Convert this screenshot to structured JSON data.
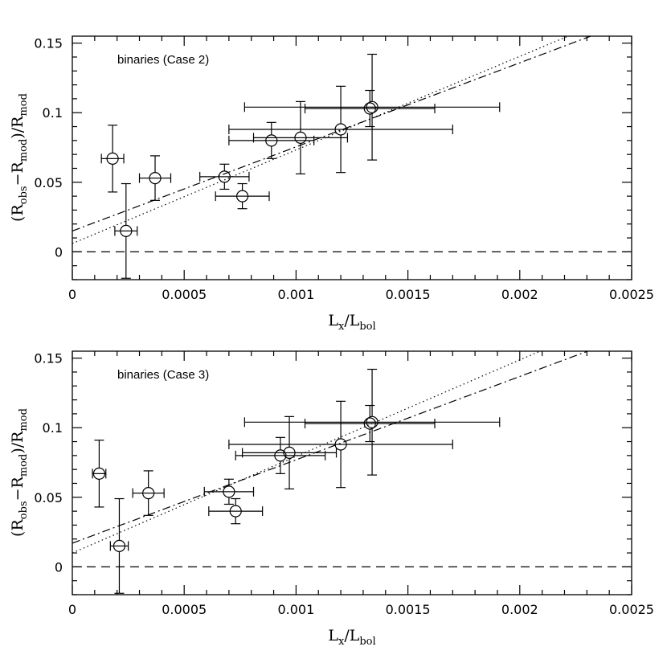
{
  "chart_data": [
    {
      "type": "scatter",
      "annotation": "binaries (Case 2)",
      "xlabel": {
        "main": "L",
        "sub1": "x",
        "sep": "/L",
        "sub2": "bol"
      },
      "ylabel": {
        "open": "(R",
        "sub1": "obs",
        "mid": "−R",
        "sub2": "mod",
        "close": ")/R",
        "sub3": "mod"
      },
      "xlim": [
        0,
        0.0025
      ],
      "ylim": [
        -0.02,
        0.155
      ],
      "xticks": [
        {
          "v": 0,
          "label": "0"
        },
        {
          "v": 0.0005,
          "label": "0.0005"
        },
        {
          "v": 0.001,
          "label": "0.001"
        },
        {
          "v": 0.0015,
          "label": "0.0015"
        },
        {
          "v": 0.002,
          "label": "0.002"
        },
        {
          "v": 0.0025,
          "label": "0.0025"
        }
      ],
      "yticks": [
        {
          "v": 0,
          "label": "0"
        },
        {
          "v": 0.05,
          "label": "0.05"
        },
        {
          "v": 0.1,
          "label": "0.1"
        },
        {
          "v": 0.15,
          "label": "0.15"
        }
      ],
      "points": [
        {
          "x": 0.00018,
          "y": 0.067,
          "xerr": 5e-05,
          "yerr_lo": 0.024,
          "yerr_hi": 0.024
        },
        {
          "x": 0.00024,
          "y": 0.015,
          "xerr": 5e-05,
          "yerr_lo": 0.034,
          "yerr_hi": 0.034
        },
        {
          "x": 0.00037,
          "y": 0.053,
          "xerr": 7e-05,
          "yerr_lo": 0.016,
          "yerr_hi": 0.016
        },
        {
          "x": 0.00068,
          "y": 0.054,
          "xerr": 0.00011,
          "yerr_lo": 0.009,
          "yerr_hi": 0.009
        },
        {
          "x": 0.00076,
          "y": 0.04,
          "xerr": 0.00012,
          "yerr_lo": 0.009,
          "yerr_hi": 0.009
        },
        {
          "x": 0.00089,
          "y": 0.08,
          "xerr": 0.00019,
          "yerr_lo": 0.013,
          "yerr_hi": 0.013
        },
        {
          "x": 0.00102,
          "y": 0.082,
          "xerr": 0.00021,
          "yerr_lo": 0.026,
          "yerr_hi": 0.026
        },
        {
          "x": 0.0012,
          "y": 0.088,
          "xerr": 0.0005,
          "yerr_lo": 0.031,
          "yerr_hi": 0.031
        },
        {
          "x": 0.00133,
          "y": 0.103,
          "xerr": 0.00029,
          "yerr_lo": 0.013,
          "yerr_hi": 0.013
        },
        {
          "x": 0.00134,
          "y": 0.104,
          "xerr": 0.00057,
          "yerr_lo": 0.038,
          "yerr_hi": 0.038
        }
      ],
      "fits": [
        {
          "style": "dotted",
          "x": [
            0,
            0.00235
          ],
          "y": [
            0.006,
            0.164
          ]
        },
        {
          "style": "dash-dot",
          "x": [
            0,
            0.00235
          ],
          "y": [
            0.015,
            0.157
          ]
        }
      ],
      "reference_line": {
        "style": "dashed",
        "y": 0
      }
    },
    {
      "type": "scatter",
      "annotation": "binaries (Case 3)",
      "xlabel": {
        "main": "L",
        "sub1": "x",
        "sep": "/L",
        "sub2": "bol"
      },
      "ylabel": {
        "open": "(R",
        "sub1": "obs",
        "mid": "−R",
        "sub2": "mod",
        "close": ")/R",
        "sub3": "mod"
      },
      "xlim": [
        0,
        0.0025
      ],
      "ylim": [
        -0.02,
        0.155
      ],
      "xticks": [
        {
          "v": 0,
          "label": "0"
        },
        {
          "v": 0.0005,
          "label": "0.0005"
        },
        {
          "v": 0.001,
          "label": "0.001"
        },
        {
          "v": 0.0015,
          "label": "0.0015"
        },
        {
          "v": 0.002,
          "label": "0.002"
        },
        {
          "v": 0.0025,
          "label": "0.0025"
        }
      ],
      "yticks": [
        {
          "v": 0,
          "label": "0"
        },
        {
          "v": 0.05,
          "label": "0.05"
        },
        {
          "v": 0.1,
          "label": "0.1"
        },
        {
          "v": 0.15,
          "label": "0.15"
        }
      ],
      "points": [
        {
          "x": 0.00012,
          "y": 0.067,
          "xerr": 3e-05,
          "yerr_lo": 0.024,
          "yerr_hi": 0.024
        },
        {
          "x": 0.00021,
          "y": 0.015,
          "xerr": 4e-05,
          "yerr_lo": 0.034,
          "yerr_hi": 0.034
        },
        {
          "x": 0.00034,
          "y": 0.053,
          "xerr": 7e-05,
          "yerr_lo": 0.016,
          "yerr_hi": 0.016
        },
        {
          "x": 0.0007,
          "y": 0.054,
          "xerr": 0.00011,
          "yerr_lo": 0.009,
          "yerr_hi": 0.009
        },
        {
          "x": 0.00073,
          "y": 0.04,
          "xerr": 0.00012,
          "yerr_lo": 0.009,
          "yerr_hi": 0.009
        },
        {
          "x": 0.00093,
          "y": 0.08,
          "xerr": 0.0002,
          "yerr_lo": 0.013,
          "yerr_hi": 0.013
        },
        {
          "x": 0.00097,
          "y": 0.082,
          "xerr": 0.00021,
          "yerr_lo": 0.026,
          "yerr_hi": 0.026
        },
        {
          "x": 0.0012,
          "y": 0.088,
          "xerr": 0.0005,
          "yerr_lo": 0.031,
          "yerr_hi": 0.031
        },
        {
          "x": 0.00133,
          "y": 0.103,
          "xerr": 0.00029,
          "yerr_lo": 0.013,
          "yerr_hi": 0.013
        },
        {
          "x": 0.00134,
          "y": 0.104,
          "xerr": 0.00057,
          "yerr_lo": 0.038,
          "yerr_hi": 0.038
        }
      ],
      "fits": [
        {
          "style": "dotted",
          "x": [
            0,
            0.00222
          ],
          "y": [
            0.01,
            0.164
          ]
        },
        {
          "style": "dash-dot",
          "x": [
            0,
            0.00232
          ],
          "y": [
            0.017,
            0.156
          ]
        }
      ],
      "reference_line": {
        "style": "dashed",
        "y": 0
      }
    }
  ]
}
